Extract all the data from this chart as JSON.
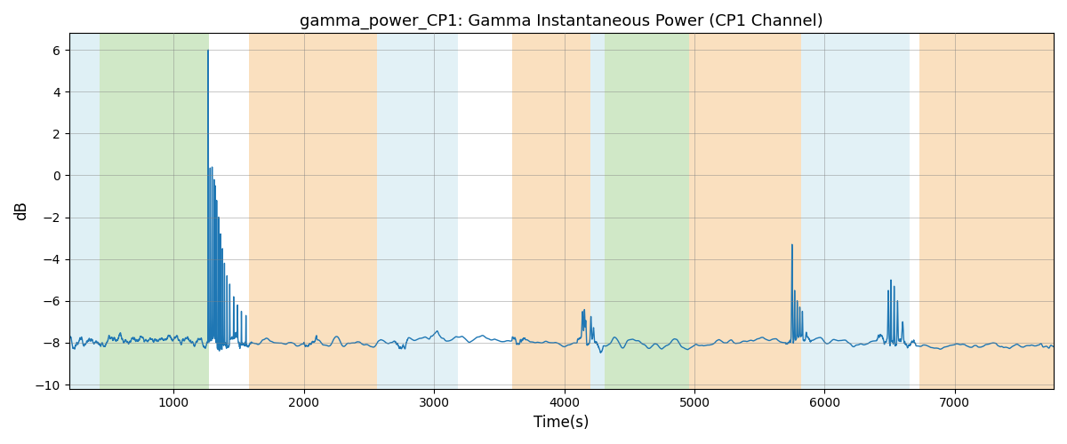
{
  "title": "gamma_power_CP1: Gamma Instantaneous Power (CP1 Channel)",
  "xlabel": "Time(s)",
  "ylabel": "dB",
  "ylim": [
    -10.2,
    6.8
  ],
  "xlim": [
    195,
    7760
  ],
  "yticks": [
    -10,
    -8,
    -6,
    -4,
    -2,
    0,
    2,
    4,
    6
  ],
  "xticks": [
    1000,
    2000,
    3000,
    4000,
    5000,
    6000,
    7000
  ],
  "line_color": "#1f77b4",
  "line_width": 1.0,
  "background_regions": [
    {
      "start": 195,
      "end": 430,
      "color": "#add8e6",
      "alpha": 0.38
    },
    {
      "start": 430,
      "end": 1270,
      "color": "#90c97a",
      "alpha": 0.42
    },
    {
      "start": 1270,
      "end": 1580,
      "color": "#ffffff",
      "alpha": 0.0
    },
    {
      "start": 1580,
      "end": 2560,
      "color": "#f5c07a",
      "alpha": 0.48
    },
    {
      "start": 2560,
      "end": 3180,
      "color": "#add8e6",
      "alpha": 0.35
    },
    {
      "start": 3180,
      "end": 3600,
      "color": "#ffffff",
      "alpha": 0.0
    },
    {
      "start": 3600,
      "end": 4200,
      "color": "#f5c07a",
      "alpha": 0.48
    },
    {
      "start": 4200,
      "end": 4310,
      "color": "#add8e6",
      "alpha": 0.38
    },
    {
      "start": 4310,
      "end": 4960,
      "color": "#90c97a",
      "alpha": 0.42
    },
    {
      "start": 4960,
      "end": 5820,
      "color": "#f5c07a",
      "alpha": 0.48
    },
    {
      "start": 5820,
      "end": 6650,
      "color": "#add8e6",
      "alpha": 0.35
    },
    {
      "start": 6650,
      "end": 6730,
      "color": "#ffffff",
      "alpha": 0.0
    },
    {
      "start": 6730,
      "end": 7760,
      "color": "#f5c07a",
      "alpha": 0.48
    }
  ],
  "seed": 12345,
  "n_points": 7600,
  "t_start": 195,
  "t_end": 7760,
  "base_level": -8.0,
  "noise_std": 0.28
}
